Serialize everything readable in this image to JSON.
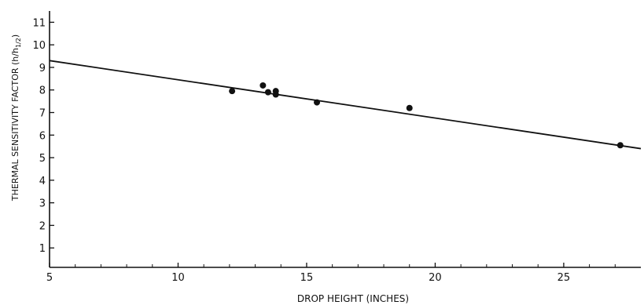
{
  "chart_data": {
    "type": "scatter",
    "title": "",
    "xlabel": "DROP HEIGHT (INCHES)",
    "ylabel": "THERMAL SENSITIVITY FACTOR (h/h",
    "ylabel_sub": "1/2",
    "ylabel_close": ")",
    "xlim": [
      5,
      28
    ],
    "ylim": [
      0,
      11.5
    ],
    "x_ticks": [
      5,
      10,
      15,
      20,
      25
    ],
    "x_minor_ticks": [
      6,
      7,
      8,
      9,
      11,
      12,
      13,
      14,
      16,
      17,
      18,
      19,
      21,
      22,
      23,
      24,
      26,
      27
    ],
    "y_ticks": [
      1,
      2,
      3,
      4,
      5,
      6,
      7,
      8,
      9,
      10,
      11
    ],
    "grid": false,
    "legend": "none",
    "series": [
      {
        "points": [
          {
            "x": 12.1,
            "y": 7.95
          },
          {
            "x": 13.3,
            "y": 8.2
          },
          {
            "x": 13.5,
            "y": 7.9
          },
          {
            "x": 13.8,
            "y": 7.95
          },
          {
            "x": 13.8,
            "y": 7.8
          },
          {
            "x": 15.4,
            "y": 7.45
          },
          {
            "x": 19.0,
            "y": 7.2
          },
          {
            "x": 27.2,
            "y": 5.55
          }
        ]
      }
    ],
    "fit_line": {
      "x": [
        5,
        28
      ],
      "y": [
        9.3,
        5.4
      ]
    },
    "colors": {
      "ink": "#111111",
      "background": "#ffffff"
    }
  }
}
